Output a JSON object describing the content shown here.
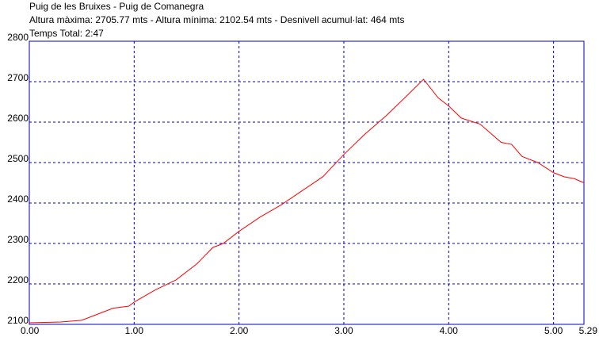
{
  "chart_data": {
    "type": "line",
    "title": "Puig de les Bruixes - Puig de Comanegra",
    "subtitle": "Altura màxima: 2705.77 mts - Altura mínima: 2102.54 mts - Desnivell acumul·lat: 464 mts",
    "annotation": "Temps Total: 2:47",
    "x": [
      0,
      0.3,
      0.5,
      0.65,
      0.8,
      0.95,
      1.0,
      1.2,
      1.4,
      1.6,
      1.75,
      1.85,
      2.0,
      2.2,
      2.4,
      2.6,
      2.8,
      3.0,
      3.2,
      3.4,
      3.6,
      3.76,
      3.9,
      4.0,
      4.12,
      4.3,
      4.5,
      4.6,
      4.7,
      4.85,
      5.0,
      5.1,
      5.2,
      5.29
    ],
    "series": [
      {
        "color": "#ff0000",
        "values": [
          2104,
          2106,
          2110,
          2125,
          2140,
          2145,
          2155,
          2185,
          2210,
          2250,
          2290,
          2300,
          2330,
          2365,
          2395,
          2430,
          2465,
          2520,
          2570,
          2615,
          2665,
          2706,
          2660,
          2640,
          2610,
          2595,
          2550,
          2545,
          2515,
          2500,
          2475,
          2465,
          2460,
          2450
        ]
      }
    ],
    "xlim": [
      0,
      5.29
    ],
    "xticks": [
      {
        "value": 0,
        "label": "0.00"
      },
      {
        "value": 1,
        "label": "1.00"
      },
      {
        "value": 2,
        "label": "2.00"
      },
      {
        "value": 3,
        "label": "3.00"
      },
      {
        "value": 4,
        "label": "4.00"
      },
      {
        "value": 5,
        "label": "5.00"
      },
      5.29
    ],
    "ylim": [
      2100,
      2800
    ],
    "yticks": [
      2100,
      2200,
      2300,
      2400,
      2500,
      2600,
      2700,
      2800
    ],
    "grid": true
  }
}
